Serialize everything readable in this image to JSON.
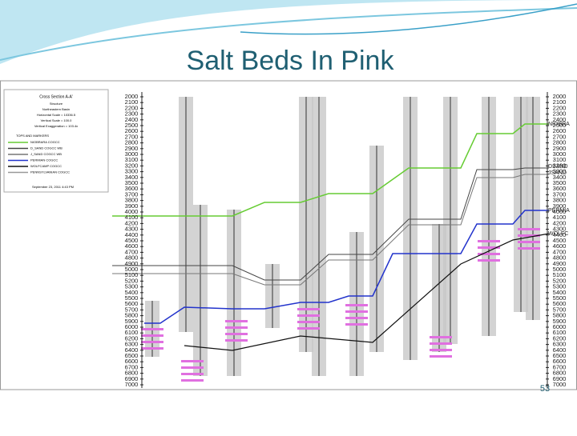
{
  "header": {
    "title": "Salt Beds In Pink"
  },
  "legend": {
    "title": "Cross Section A-A'",
    "lines": [
      "Structure",
      "Northeastern Basin",
      "Horizontal Scale = 10336.5",
      "Vertical Scale = 100.0",
      "Vertical Exaggeration = 103.4x"
    ],
    "markers_title": "TOPS AND MARKERS",
    "markers": [
      "NIOBRARA COGCC",
      "D_SAND COGCC WB",
      "J_SAND COGCC WB",
      "PERMIAN COGCC",
      "WOLFCAMP COGCC",
      "PENNSYLVANIAN COGCC"
    ],
    "date": "September 23, 2011   4:43 PM"
  },
  "depth_labels": [
    2000,
    2100,
    2200,
    2300,
    2400,
    2500,
    2600,
    2700,
    2800,
    2900,
    3000,
    3100,
    3200,
    3300,
    3400,
    3500,
    3600,
    3700,
    3800,
    3900,
    4000,
    4100,
    4200,
    4300,
    4400,
    4500,
    4600,
    4700,
    4800,
    4900,
    5000,
    5100,
    5200,
    5300,
    5400,
    5500,
    5600,
    5700,
    5800,
    5900,
    6000,
    6100,
    6200,
    6300,
    6400,
    6500,
    6600,
    6700,
    6800,
    6900,
    7000
  ],
  "right_markers": [
    "NIOBRA",
    "DSAND",
    "JSAND",
    "PERMIA",
    "WOLFC"
  ],
  "footer": {
    "page_number": "53"
  }
}
